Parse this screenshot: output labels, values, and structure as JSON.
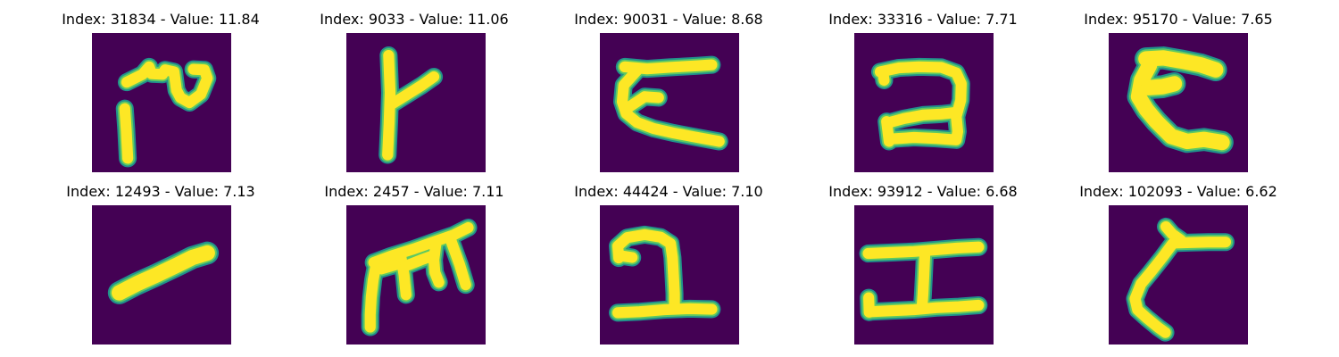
{
  "colors": {
    "background": "#440154",
    "stroke_core": "#fde725",
    "stroke_edge": "#21918c",
    "stroke_mid": "#5ec962"
  },
  "panels": [
    {
      "index": "31834",
      "value": "11.84",
      "title": "Index: 31834 - Value: 11.84"
    },
    {
      "index": "9033",
      "value": "11.06",
      "title": "Index: 9033 - Value: 11.06"
    },
    {
      "index": "90031",
      "value": "8.68",
      "title": "Index: 90031 - Value: 8.68"
    },
    {
      "index": "33316",
      "value": "7.71",
      "title": "Index: 33316 - Value: 7.71"
    },
    {
      "index": "95170",
      "value": "7.65",
      "title": "Index: 95170 - Value: 7.65"
    },
    {
      "index": "12493",
      "value": "7.13",
      "title": "Index: 12493 - Value: 7.13"
    },
    {
      "index": "2457",
      "value": "7.11",
      "title": "Index: 2457 - Value: 7.11"
    },
    {
      "index": "44424",
      "value": "7.10",
      "title": "Index: 44424 - Value: 7.10"
    },
    {
      "index": "93912",
      "value": "6.68",
      "title": "Index: 93912 - Value: 6.68"
    },
    {
      "index": "102093",
      "value": "6.62",
      "title": "Index: 102093 - Value: 6.62"
    }
  ]
}
